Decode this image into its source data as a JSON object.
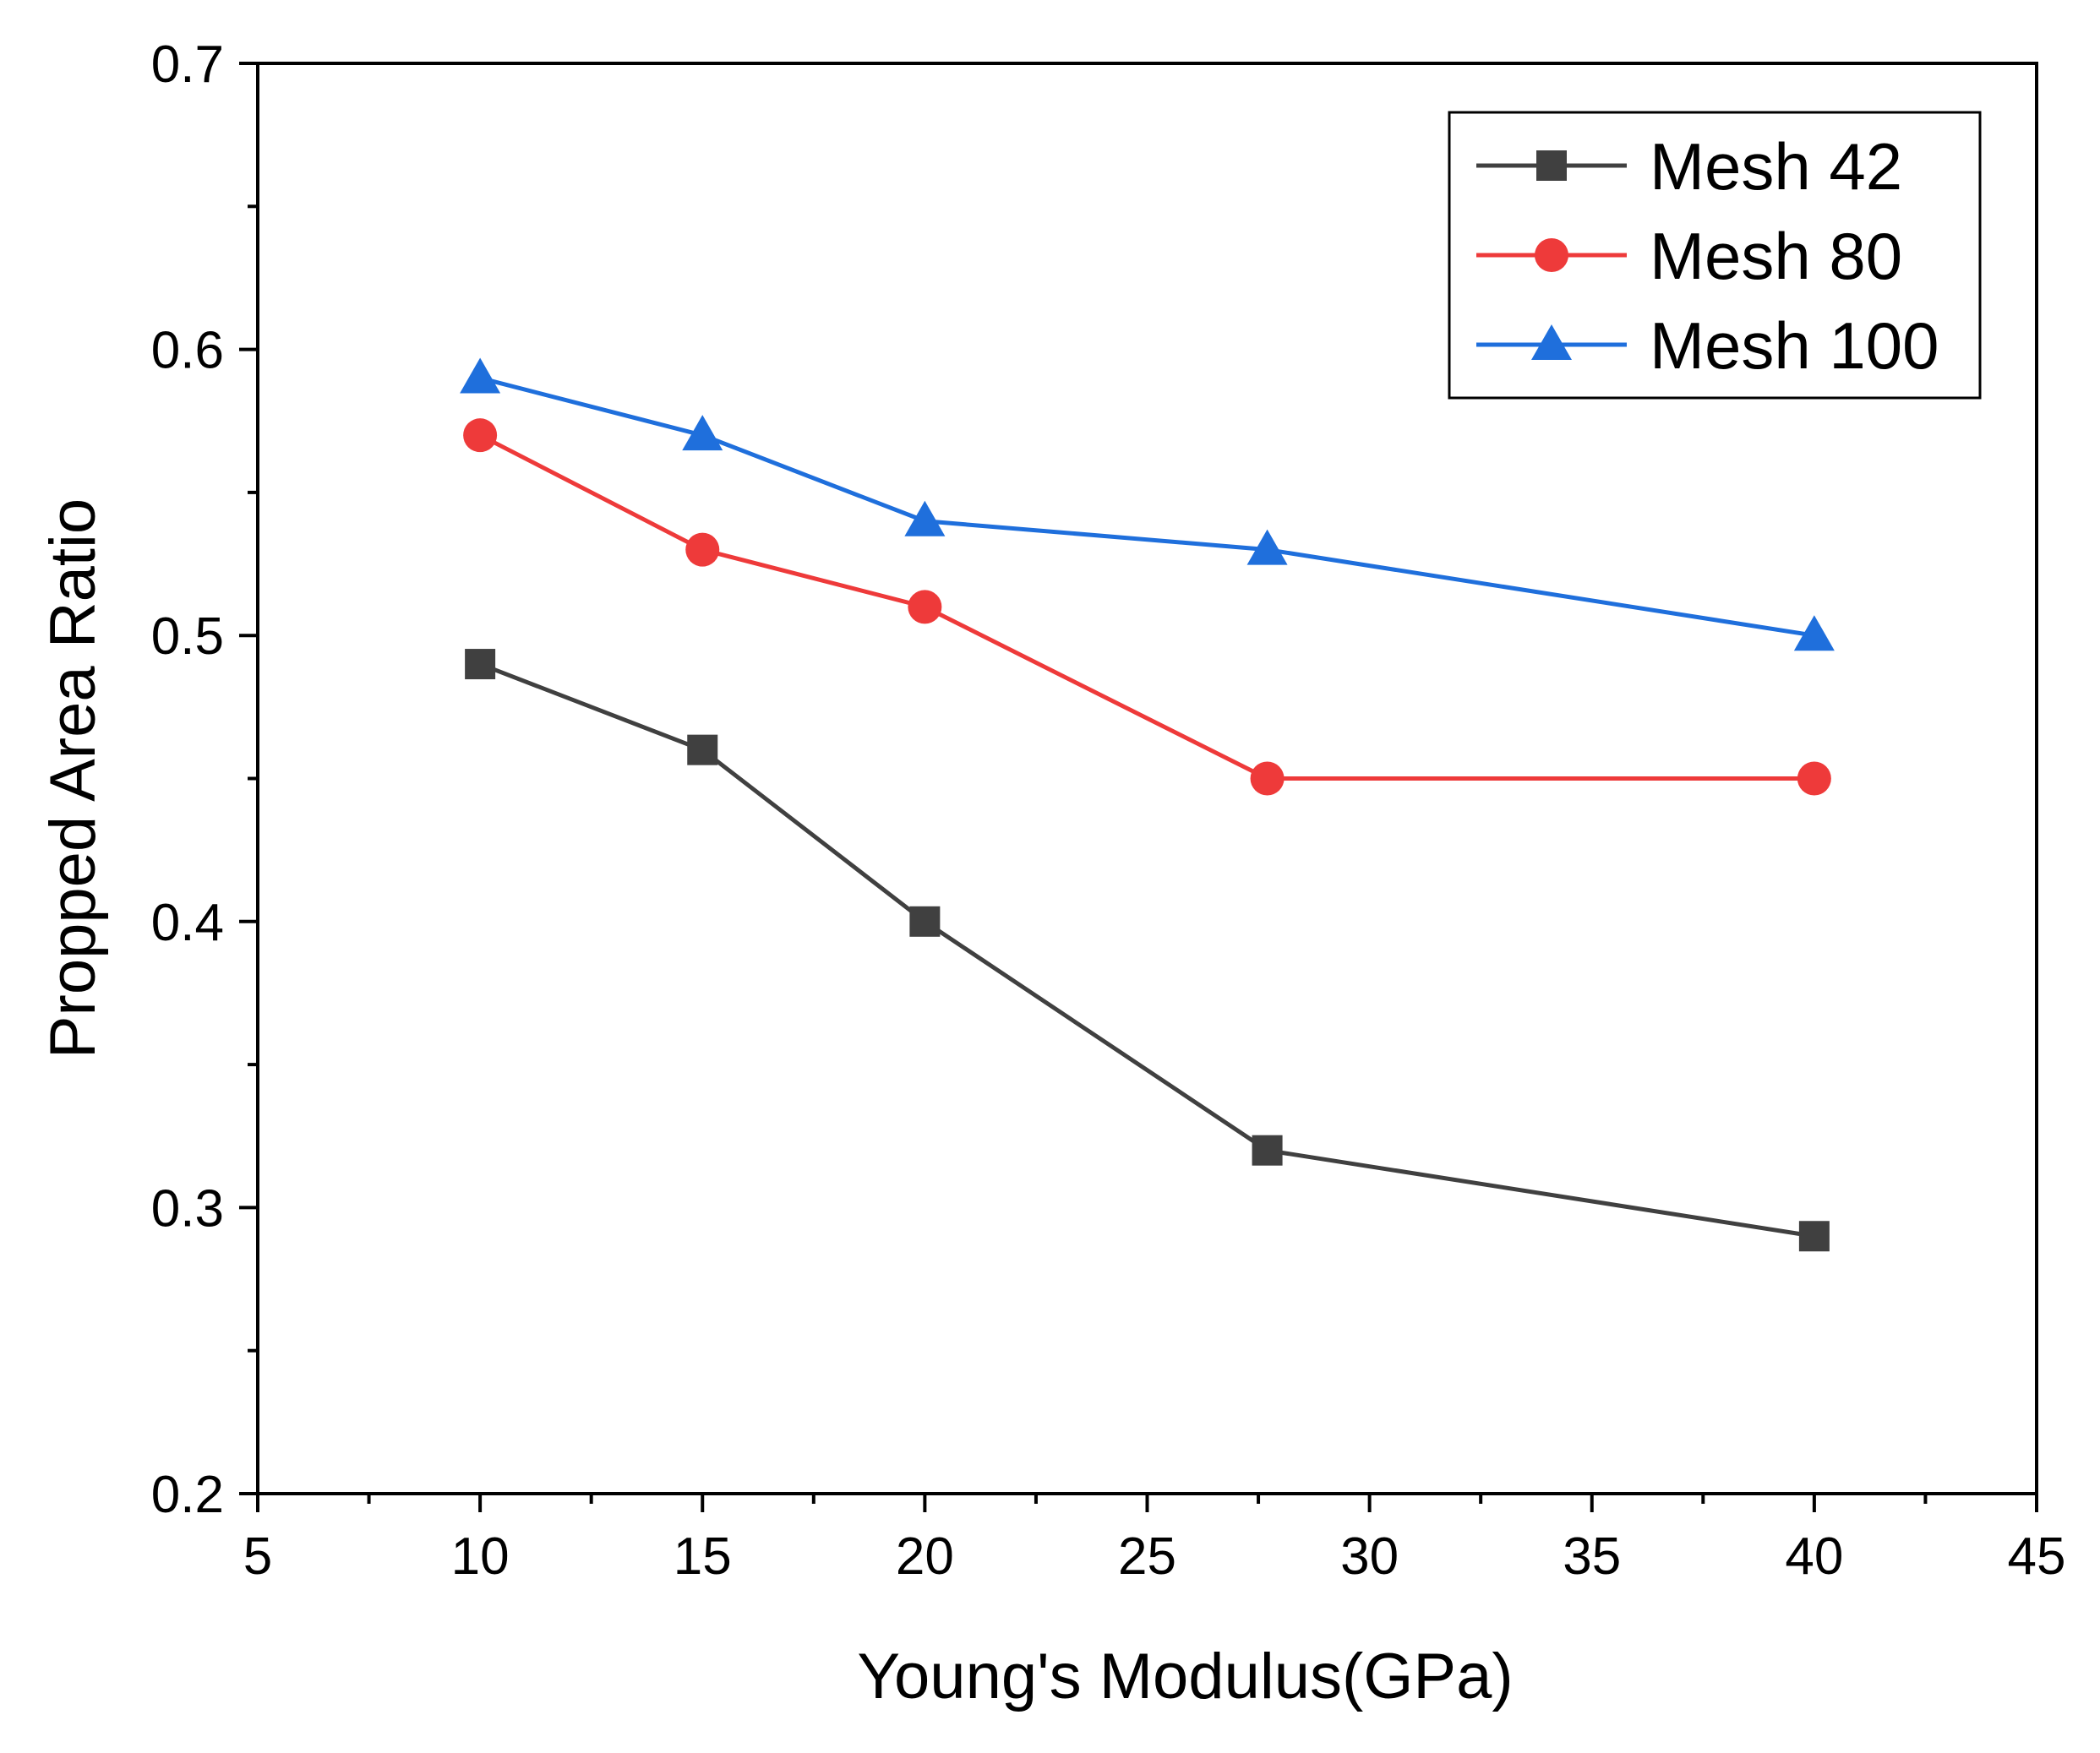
{
  "chart_data": {
    "type": "line",
    "title": "",
    "xlabel": "Young's Modulus(GPa)",
    "ylabel": "Propped Area Ratio",
    "xlim": [
      5,
      45
    ],
    "ylim": [
      0.2,
      0.7
    ],
    "x_ticks": [
      5,
      10,
      15,
      20,
      25,
      30,
      35,
      40,
      45
    ],
    "y_ticks": [
      0.2,
      0.3,
      0.4,
      0.5,
      0.6,
      0.7
    ],
    "x_tick_labels": [
      "5",
      "10",
      "15",
      "20",
      "25",
      "30",
      "35",
      "40",
      "45"
    ],
    "y_tick_labels": [
      "0.2",
      "0.3",
      "0.4",
      "0.5",
      "0.6",
      "0.7"
    ],
    "grid": false,
    "legend_position": "top-right",
    "x": [
      10,
      15,
      20,
      27.7,
      40
    ],
    "series": [
      {
        "name": "Mesh 42",
        "marker": "square",
        "color": "#404040",
        "values": [
          0.49,
          0.46,
          0.4,
          0.32,
          0.29
        ]
      },
      {
        "name": "Mesh 80",
        "marker": "circle",
        "color": "#ee3a3a",
        "values": [
          0.57,
          0.53,
          0.51,
          0.45,
          0.45
        ]
      },
      {
        "name": "Mesh 100",
        "marker": "triangle",
        "color": "#1f6fdc",
        "values": [
          0.59,
          0.57,
          0.54,
          0.53,
          0.5
        ]
      }
    ]
  }
}
